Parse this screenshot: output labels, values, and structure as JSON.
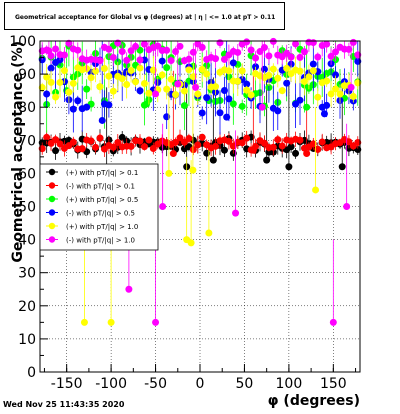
{
  "chart_data": {
    "type": "scatter",
    "title": "Geometrical acceptance for Global vs φ (degrees) at | η | <= 1.0 at pT > 0.11",
    "xlabel": "φ (degrees)",
    "ylabel": "Geometrical acceptance (%)",
    "xlim": [
      -180,
      180
    ],
    "ylim": [
      0,
      100
    ],
    "x_ticks": [
      -150,
      -100,
      -50,
      0,
      50,
      100,
      150
    ],
    "y_ticks": [
      0,
      10,
      20,
      30,
      40,
      50,
      60,
      70,
      80,
      90,
      100
    ],
    "grid": true,
    "legend_position": "left-middle",
    "series": [
      {
        "name": "(+) with pT/|q| > 0.1",
        "color": "#000000",
        "band": [
          66,
          71
        ],
        "outliers": [
          [
            -105,
            61
          ],
          [
            -15,
            62
          ],
          [
            15,
            64
          ],
          [
            75,
            64
          ],
          [
            100,
            62
          ],
          [
            160,
            62
          ]
        ]
      },
      {
        "name": "(-) with pT/|q| > 0.1",
        "color": "#ff0000",
        "band": [
          67,
          71
        ],
        "outliers": [
          [
            -30,
            66
          ],
          [
            60,
            67
          ],
          [
            120,
            66
          ]
        ]
      },
      {
        "name": "(+) with pT/|q| > 0.5",
        "color": "#00ff00",
        "band": [
          80,
          99
        ],
        "outliers": [
          [
            -150,
            85
          ],
          [
            -60,
            81
          ],
          [
            10,
            82
          ],
          [
            120,
            80
          ]
        ]
      },
      {
        "name": "(-) with pT/|q| > 0.5",
        "color": "#0000ff",
        "band": [
          77,
          95
        ],
        "outliers": [
          [
            -110,
            76
          ],
          [
            30,
            77
          ],
          [
            140,
            78
          ]
        ]
      },
      {
        "name": "(+) with pT/|q| > 1.0",
        "color": "#ffff00",
        "band": [
          83,
          92
        ],
        "outliers": [
          [
            -130,
            15
          ],
          [
            -100,
            15
          ],
          [
            -15,
            40
          ],
          [
            -10,
            39
          ],
          [
            10,
            42
          ],
          [
            130,
            55
          ],
          [
            -35,
            60
          ],
          [
            -8,
            61
          ]
        ]
      },
      {
        "name": "(-) with pT/|q| > 1.0",
        "color": "#ff00ff",
        "band": [
          94,
          100
        ],
        "outliers": [
          [
            -170,
            97
          ],
          [
            -80,
            25
          ],
          [
            -50,
            15
          ],
          [
            -42,
            50
          ],
          [
            -50,
            84
          ],
          [
            -25,
            87
          ],
          [
            -5,
            86
          ],
          [
            40,
            48
          ],
          [
            70,
            80
          ],
          [
            150,
            15
          ],
          [
            165,
            50
          ],
          [
            170,
            86
          ]
        ]
      }
    ]
  },
  "footer": {
    "timestamp": "Wed Nov 25 11:43:35 2020"
  }
}
